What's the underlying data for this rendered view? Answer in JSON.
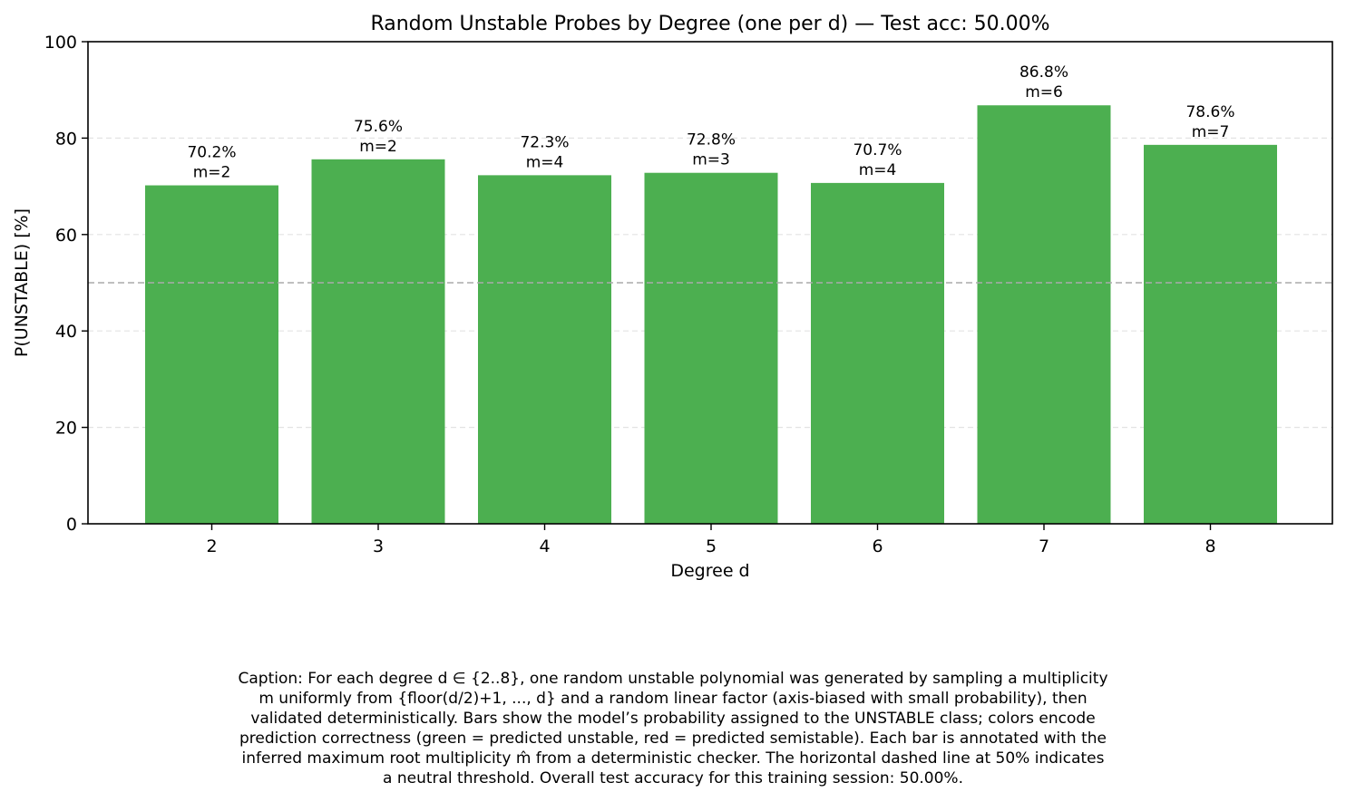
{
  "chart_data": {
    "type": "bar",
    "title": "Random Unstable Probes by Degree (one per d) — Test acc: 50.00%",
    "xlabel": "Degree d",
    "ylabel": "P(UNSTABLE) [%]",
    "categories": [
      "2",
      "3",
      "4",
      "5",
      "6",
      "7",
      "8"
    ],
    "values": [
      70.2,
      75.6,
      72.3,
      72.8,
      70.7,
      86.8,
      78.6
    ],
    "value_labels": [
      "70.2%",
      "75.6%",
      "72.3%",
      "72.8%",
      "70.7%",
      "86.8%",
      "78.6%"
    ],
    "multiplicity_labels": [
      "m=2",
      "m=2",
      "m=4",
      "m=3",
      "m=4",
      "m=6",
      "m=7"
    ],
    "ylim": [
      0,
      100
    ],
    "yticks": [
      0,
      20,
      40,
      60,
      80,
      100
    ],
    "threshold": 50,
    "grid": "horizontal dashed",
    "colors": {
      "bar": "#4caf50",
      "threshold": "#aaaaaa",
      "grid": "#e3e3e3",
      "axis": "#000000"
    }
  },
  "caption_lines": [
    "Caption: For each degree d ∈ {2..8}, one random unstable polynomial was generated by sampling a multiplicity",
    "m uniformly from {floor(d/2)+1, ..., d} and a random linear factor (axis-biased with small probability), then",
    "validated deterministically. Bars show the model’s probability assigned to the UNSTABLE class; colors encode",
    "prediction correctness (green = predicted unstable, red = predicted semistable). Each bar is annotated with the",
    "inferred maximum root multiplicity m̂ from a deterministic checker. The horizontal dashed line at 50% indicates",
    "a neutral threshold. Overall test accuracy for this training session: 50.00%."
  ]
}
